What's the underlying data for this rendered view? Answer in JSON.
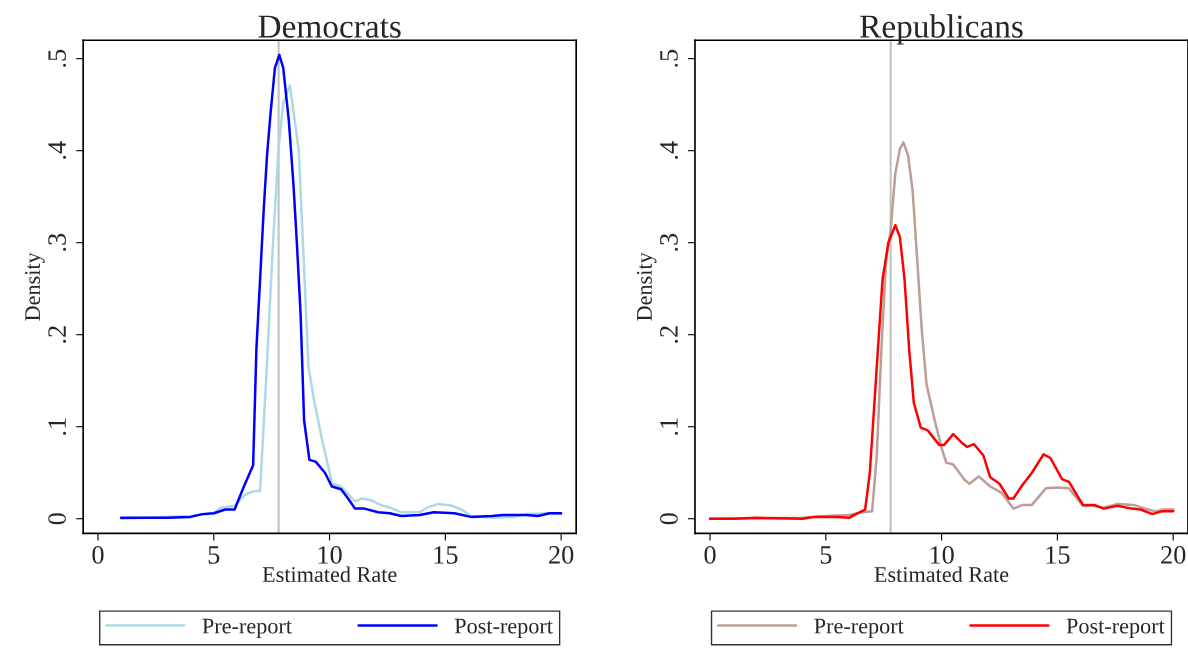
{
  "chart_data": [
    {
      "type": "line",
      "title": "Democrats",
      "xlabel": "Estimated Rate",
      "ylabel": "Density",
      "xlim": [
        -0.64,
        20.65
      ],
      "ylim": [
        -0.016,
        0.52
      ],
      "xticks": [
        0,
        5,
        10,
        15,
        20
      ],
      "yticks": [
        0,
        {
          "value": 0.1,
          "label": ".1"
        },
        {
          "value": 0.2,
          "label": ".2"
        },
        {
          "value": 0.3,
          "label": ".3"
        },
        {
          "value": 0.4,
          "label": ".4"
        },
        {
          "value": 0.5,
          "label": ".5"
        }
      ],
      "grid": false,
      "legend": "bottom",
      "ref_lines": [
        {
          "axis": "x",
          "value": 7.8,
          "color": "#c0c0c0"
        }
      ],
      "series": [
        {
          "name": "Pre-report",
          "color": "#add8e6",
          "x": [
            1,
            4,
            5,
            5.3,
            5.9,
            6.3,
            6.6,
            6.8,
            7.0,
            7.25,
            7.56,
            7.79,
            8.0,
            8.29,
            8.67,
            8.85,
            9.09,
            9.32,
            9.66,
            10.11,
            10.5,
            11.1,
            11.4,
            11.8,
            12.2,
            12.6,
            13.1,
            13.9,
            14.2,
            14.7,
            15.3,
            15.7,
            16.1,
            17,
            18,
            18.5,
            19.5,
            20
          ],
          "values": [
            0,
            0.003,
            0.006,
            0.012,
            0.014,
            0.025,
            0.029,
            0.03,
            0.03,
            0.146,
            0.3,
            0.4,
            0.452,
            0.471,
            0.4,
            0.3,
            0.165,
            0.13,
            0.088,
            0.038,
            0.035,
            0.019,
            0.022,
            0.02,
            0.015,
            0.012,
            0.007,
            0.007,
            0.012,
            0.016,
            0.014,
            0.01,
            0.003,
            0.001,
            0.002,
            0.005,
            0.006,
            0.005
          ]
        },
        {
          "name": "Post-report",
          "color": "#0000ff",
          "x": [
            1,
            3,
            4,
            4.5,
            5,
            5.5,
            5.9,
            6.3,
            6.7,
            6.84,
            7.0,
            7.15,
            7.3,
            7.45,
            7.64,
            7.83,
            8.0,
            8.24,
            8.44,
            8.59,
            8.75,
            8.9,
            9.13,
            9.4,
            9.8,
            10.1,
            10.5,
            10.8,
            11.1,
            11.5,
            12.1,
            12.6,
            13.1,
            13.9,
            14.5,
            15.4,
            16.1,
            17,
            17.5,
            18.5,
            19,
            19.5,
            20
          ],
          "values": [
            0.001,
            0.001,
            0.002,
            0.005,
            0.006,
            0.01,
            0.01,
            0.035,
            0.058,
            0.184,
            0.26,
            0.333,
            0.395,
            0.44,
            0.49,
            0.504,
            0.49,
            0.433,
            0.364,
            0.299,
            0.222,
            0.107,
            0.064,
            0.062,
            0.05,
            0.035,
            0.032,
            0.022,
            0.011,
            0.011,
            0.007,
            0.006,
            0.003,
            0.004,
            0.007,
            0.006,
            0.002,
            0.003,
            0.004,
            0.004,
            0.003,
            0.006,
            0.006
          ]
        }
      ]
    },
    {
      "type": "line",
      "title": "Republicans",
      "xlabel": "Estimated Rate",
      "ylabel": "Density",
      "xlim": [
        -0.65,
        20.64
      ],
      "ylim": [
        -0.016,
        0.52
      ],
      "xticks": [
        0,
        5,
        10,
        15,
        20
      ],
      "yticks": [
        0,
        {
          "value": 0.1,
          "label": ".1"
        },
        {
          "value": 0.2,
          "label": ".2"
        },
        {
          "value": 0.3,
          "label": ".3"
        },
        {
          "value": 0.4,
          "label": ".4"
        },
        {
          "value": 0.5,
          "label": ".5"
        }
      ],
      "grid": false,
      "legend": "bottom",
      "ref_lines": [
        {
          "axis": "x",
          "value": 7.8,
          "color": "#c0c0c0"
        }
      ],
      "series": [
        {
          "name": "Pre-report",
          "color": "#bc9e96",
          "x": [
            0,
            4,
            5,
            6,
            6.6,
            7.0,
            7.2,
            7.4,
            7.6,
            7.8,
            8.0,
            8.2,
            8.35,
            8.55,
            8.75,
            8.95,
            9.15,
            9.35,
            9.7,
            10.0,
            10.2,
            10.5,
            11.0,
            11.2,
            11.6,
            12.1,
            12.6,
            13.1,
            13.5,
            13.9,
            14.5,
            15.0,
            15.5,
            16.1,
            16.5,
            17.0,
            17.6,
            18.3,
            18.8,
            19.2,
            19.6,
            20
          ],
          "values": [
            0,
            0.001,
            0.003,
            0.004,
            0.007,
            0.008,
            0.069,
            0.184,
            0.28,
            0.314,
            0.375,
            0.402,
            0.409,
            0.395,
            0.356,
            0.28,
            0.203,
            0.146,
            0.107,
            0.077,
            0.061,
            0.059,
            0.042,
            0.038,
            0.046,
            0.035,
            0.028,
            0.011,
            0.015,
            0.015,
            0.033,
            0.034,
            0.033,
            0.014,
            0.014,
            0.012,
            0.016,
            0.015,
            0.011,
            0.008,
            0.01,
            0.01
          ]
        },
        {
          "name": "Post-report",
          "color": "#ff0000",
          "x": [
            0,
            1,
            2,
            4,
            4.5,
            5.5,
            6,
            6.3,
            6.7,
            6.9,
            7.05,
            7.2,
            7.45,
            7.7,
            8.0,
            8.2,
            8.4,
            8.6,
            8.8,
            9.1,
            9.4,
            9.9,
            10.1,
            10.5,
            10.9,
            11.1,
            11.4,
            11.8,
            12.1,
            12.5,
            12.9,
            13.1,
            13.5,
            13.9,
            14.4,
            14.7,
            15.2,
            15.5,
            16.1,
            16.6,
            17.0,
            17.6,
            18.2,
            18.6,
            19.1,
            19.5,
            20
          ],
          "values": [
            0,
            0,
            0.001,
            0,
            0.002,
            0.002,
            0.001,
            0.005,
            0.01,
            0.05,
            0.107,
            0.165,
            0.26,
            0.3,
            0.319,
            0.306,
            0.26,
            0.184,
            0.126,
            0.099,
            0.096,
            0.08,
            0.08,
            0.092,
            0.082,
            0.078,
            0.081,
            0.069,
            0.045,
            0.038,
            0.022,
            0.022,
            0.037,
            0.05,
            0.07,
            0.066,
            0.043,
            0.04,
            0.015,
            0.015,
            0.011,
            0.014,
            0.011,
            0.01,
            0.005,
            0.008,
            0.008
          ]
        }
      ]
    }
  ]
}
